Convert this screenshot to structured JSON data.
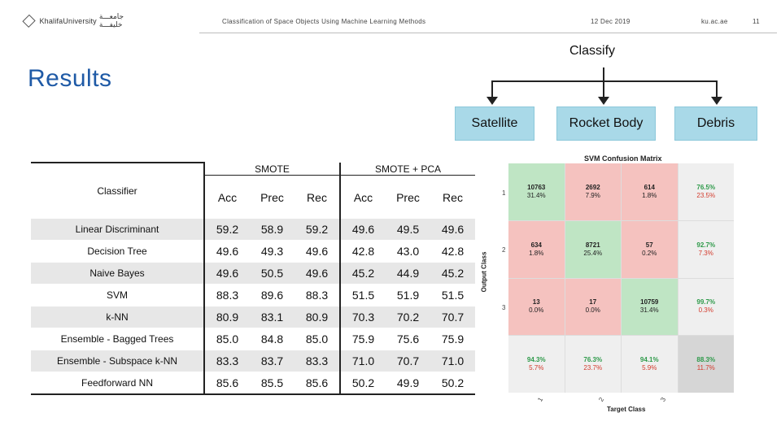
{
  "header": {
    "logo_en": "KhalifaUniversity",
    "logo_ar": "جامعـــة خليفـــة",
    "presentation_title": "Classification of Space Objects Using Machine Learning Methods",
    "date": "12 Dec 2019",
    "site": "ku.ac.ae",
    "page": "11"
  },
  "title": "Results",
  "classify": {
    "label": "Classify",
    "categories": [
      "Satellite",
      "Rocket Body",
      "Debris"
    ]
  },
  "table": {
    "classifier_header": "Classifier",
    "group1": "SMOTE",
    "group2": "SMOTE + PCA",
    "metrics": [
      "Acc",
      "Prec",
      "Rec",
      "Acc",
      "Prec",
      "Rec"
    ],
    "rows": [
      {
        "name": "Linear Discriminant",
        "values": [
          "59.2",
          "58.9",
          "59.2",
          "49.6",
          "49.5",
          "49.6"
        ]
      },
      {
        "name": "Decision Tree",
        "values": [
          "49.6",
          "49.3",
          "49.6",
          "42.8",
          "43.0",
          "42.8"
        ]
      },
      {
        "name": "Naive Bayes",
        "values": [
          "49.6",
          "50.5",
          "49.6",
          "45.2",
          "44.9",
          "45.2"
        ]
      },
      {
        "name": "SVM",
        "values": [
          "88.3",
          "89.6",
          "88.3",
          "51.5",
          "51.9",
          "51.5"
        ]
      },
      {
        "name": "k-NN",
        "values": [
          "80.9",
          "83.1",
          "80.9",
          "70.3",
          "70.2",
          "70.7"
        ]
      },
      {
        "name": "Ensemble - Bagged Trees",
        "values": [
          "85.0",
          "84.8",
          "85.0",
          "75.9",
          "75.6",
          "75.9"
        ]
      },
      {
        "name": "Ensemble - Subspace k-NN",
        "values": [
          "83.3",
          "83.7",
          "83.3",
          "71.0",
          "70.7",
          "71.0"
        ]
      },
      {
        "name": "Feedforward NN",
        "values": [
          "85.6",
          "85.5",
          "85.6",
          "50.2",
          "49.9",
          "50.2"
        ]
      }
    ]
  },
  "confusion_matrix": {
    "title": "SVM Confusion Matrix",
    "ylabel": "Output Class",
    "xlabel": "Target Class",
    "row_ticks": [
      "1",
      "2",
      "3"
    ],
    "col_ticks": [
      "1",
      "2",
      "3"
    ],
    "cells": [
      [
        {
          "v1": "10763",
          "v2": "31.4%",
          "kind": "g"
        },
        {
          "v1": "2692",
          "v2": "7.9%",
          "kind": "r"
        },
        {
          "v1": "614",
          "v2": "1.8%",
          "kind": "r"
        },
        {
          "v1": "76.5%",
          "v2": "23.5%",
          "kind": "s"
        }
      ],
      [
        {
          "v1": "634",
          "v2": "1.8%",
          "kind": "r"
        },
        {
          "v1": "8721",
          "v2": "25.4%",
          "kind": "g"
        },
        {
          "v1": "57",
          "v2": "0.2%",
          "kind": "r"
        },
        {
          "v1": "92.7%",
          "v2": "7.3%",
          "kind": "s"
        }
      ],
      [
        {
          "v1": "13",
          "v2": "0.0%",
          "kind": "r"
        },
        {
          "v1": "17",
          "v2": "0.0%",
          "kind": "r"
        },
        {
          "v1": "10759",
          "v2": "31.4%",
          "kind": "g"
        },
        {
          "v1": "99.7%",
          "v2": "0.3%",
          "kind": "s"
        }
      ],
      [
        {
          "v1": "94.3%",
          "v2": "5.7%",
          "kind": "s"
        },
        {
          "v1": "76.3%",
          "v2": "23.7%",
          "kind": "s"
        },
        {
          "v1": "94.1%",
          "v2": "5.9%",
          "kind": "s"
        },
        {
          "v1": "88.3%",
          "v2": "11.7%",
          "kind": "t"
        }
      ]
    ]
  }
}
